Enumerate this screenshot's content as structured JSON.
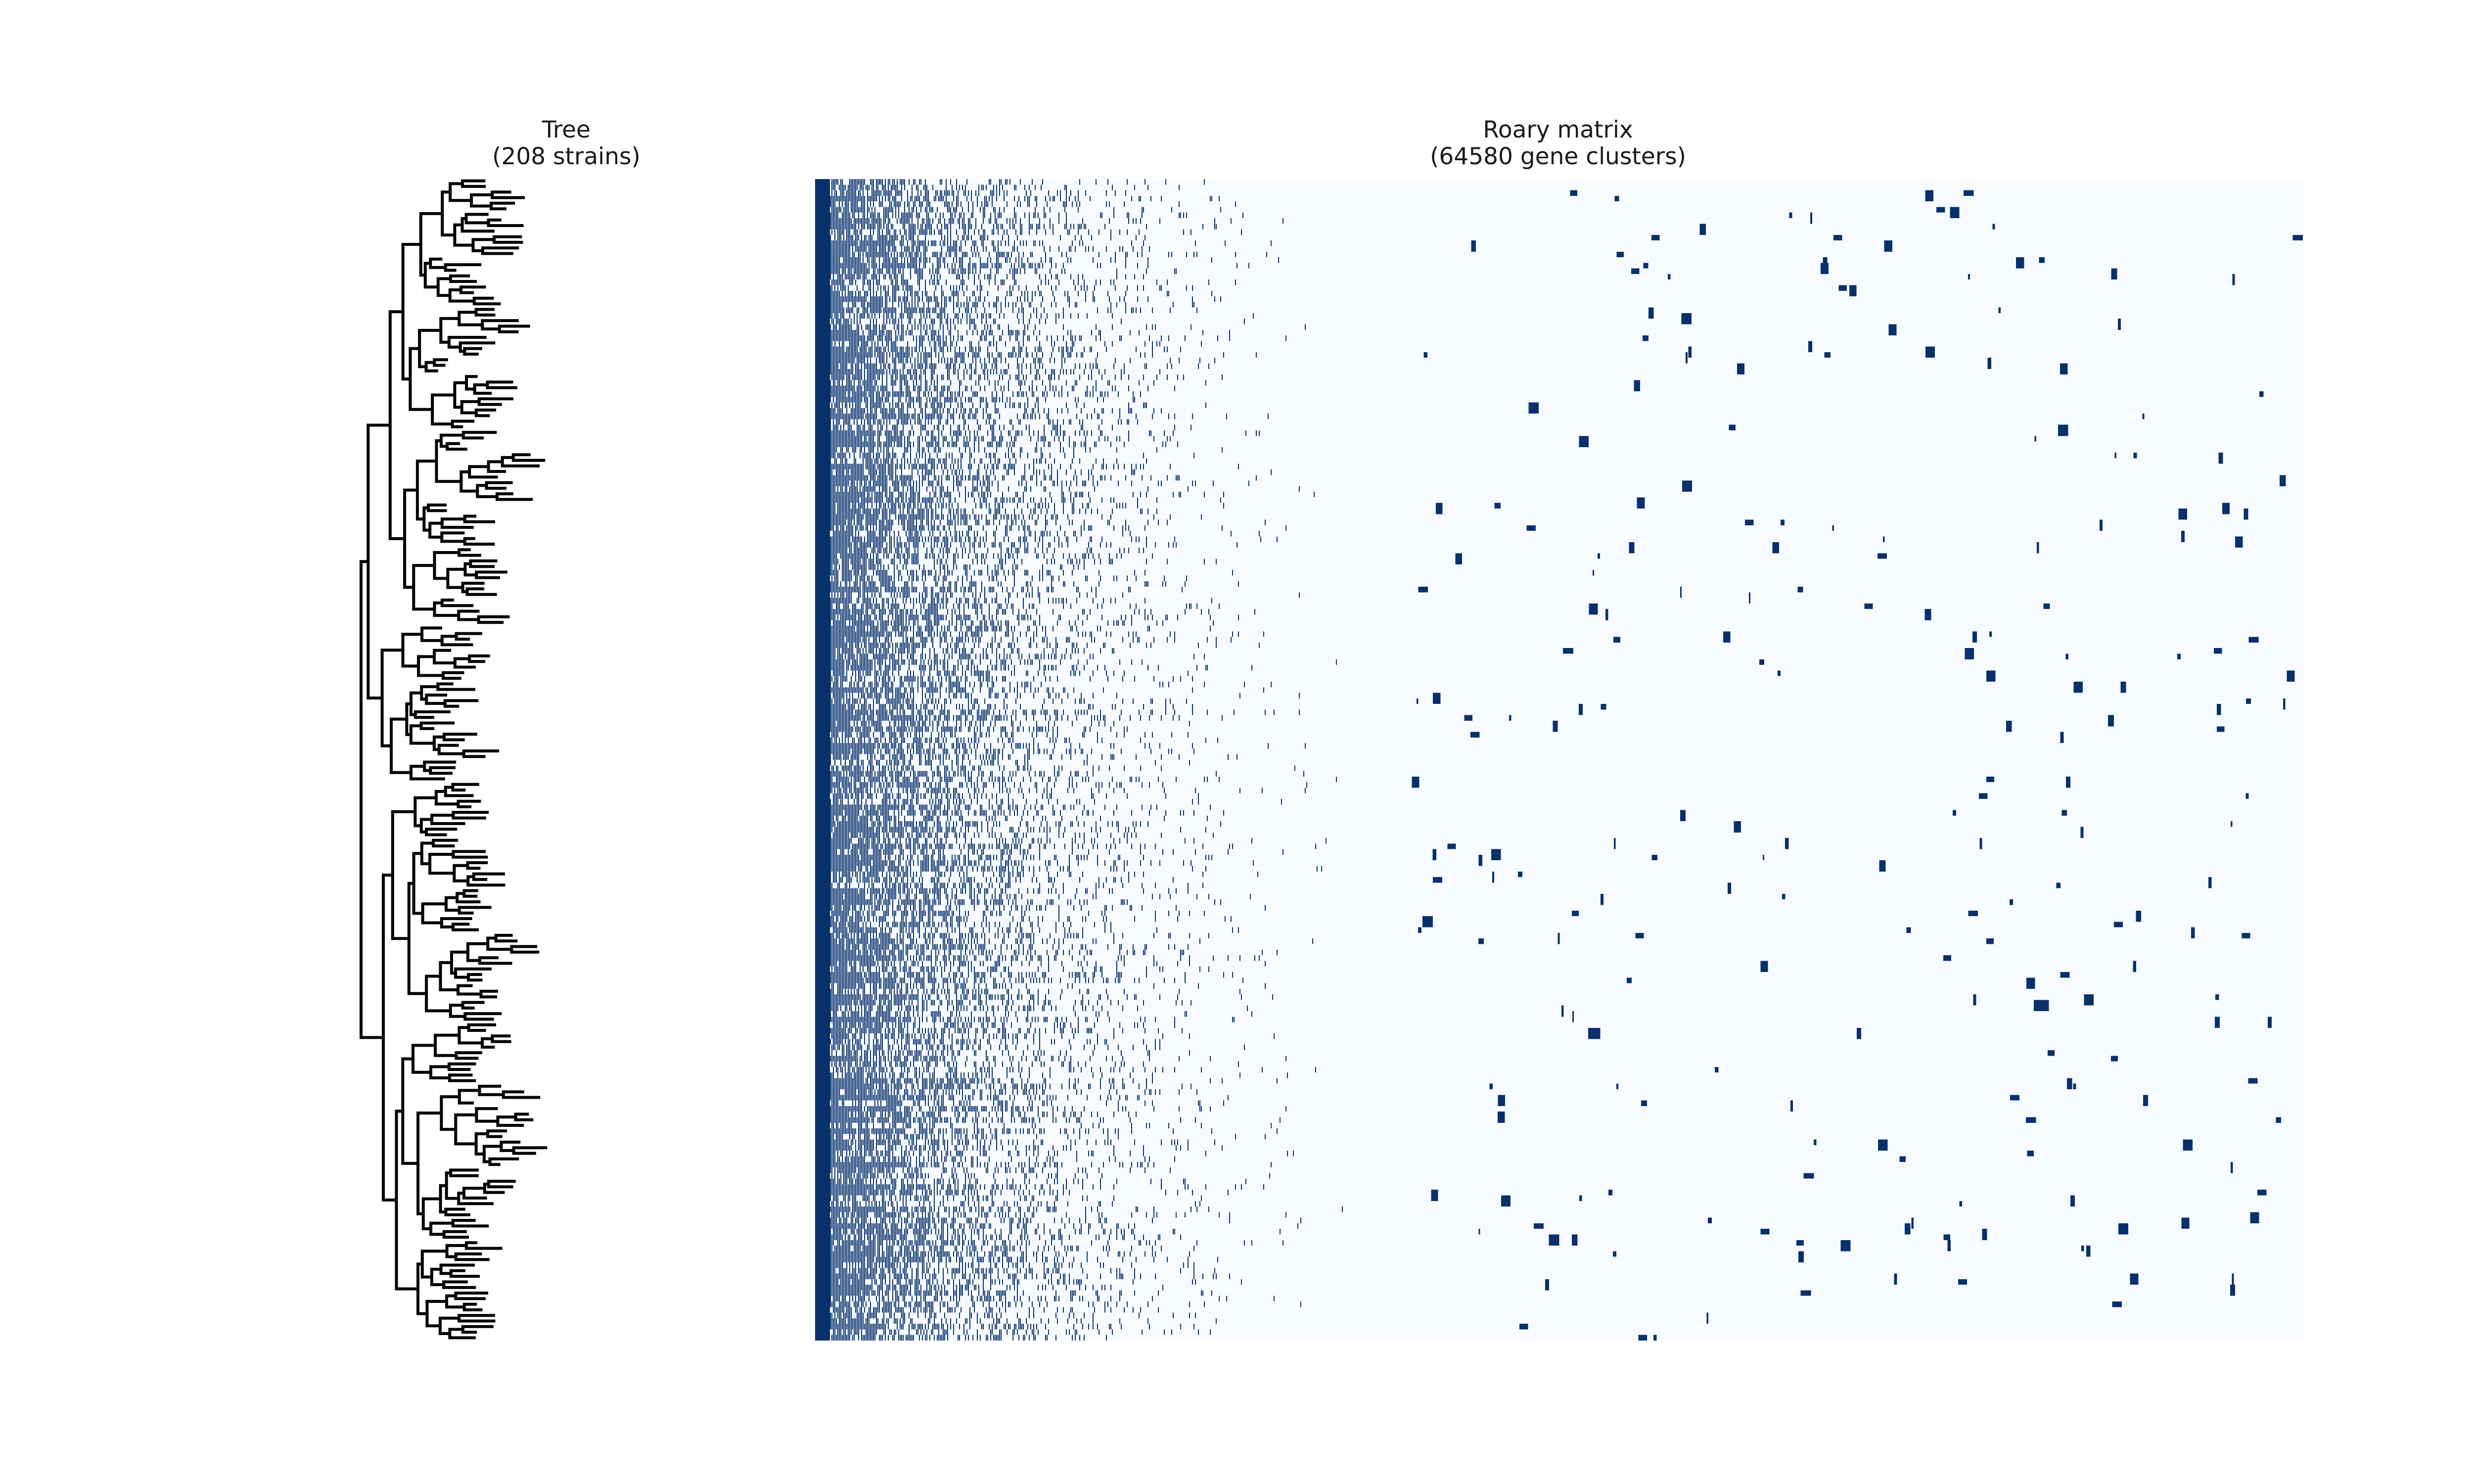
{
  "tree": {
    "title_line1": "Tree",
    "title_line2": "(208 strains)",
    "strain_count": 208
  },
  "matrix": {
    "title_line1": "Roary matrix",
    "title_line2": "(64580 gene clusters)",
    "gene_cluster_count": 64580,
    "colormap": "Blues",
    "absent_color": "#f7fbff",
    "present_color": "#08306b"
  }
}
